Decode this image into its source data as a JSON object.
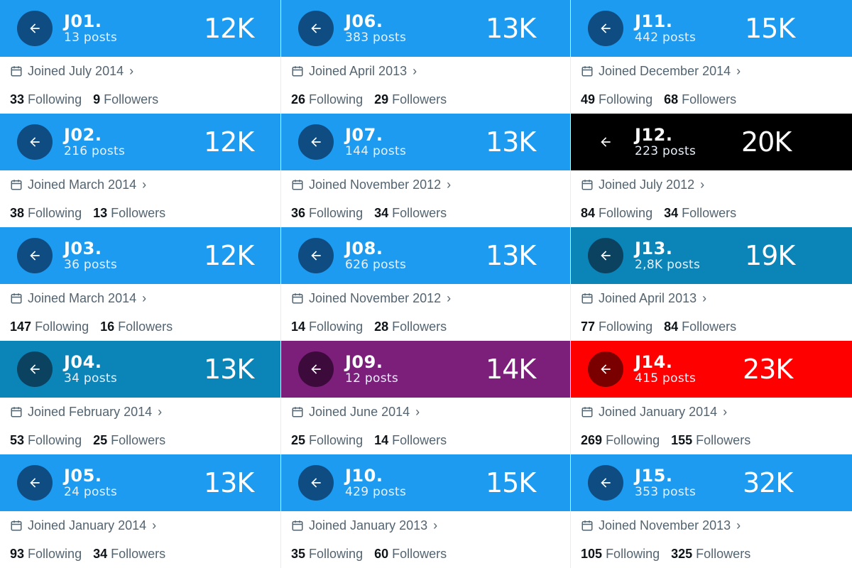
{
  "columns": [
    {
      "big_left": 287,
      "cards": [
        {
          "id": "J01.",
          "posts": "13 posts",
          "count": "12K",
          "joined": "Joined July 2014",
          "following": "33",
          "followers": "9",
          "bg": "#1d9bf0",
          "btn": "#0f4c81"
        },
        {
          "id": "J02.",
          "posts": "216 posts",
          "count": "12K",
          "joined": "Joined March 2014",
          "following": "38",
          "followers": "13",
          "bg": "#1d9bf0",
          "btn": "#0f4c81"
        },
        {
          "id": "J03.",
          "posts": "36 posts",
          "count": "12K",
          "joined": "Joined March 2014",
          "following": "147",
          "followers": "16",
          "bg": "#1d9bf0",
          "btn": "#0f4c81"
        },
        {
          "id": "J04.",
          "posts": "34 posts",
          "count": "13K",
          "joined": "Joined February 2014",
          "following": "53",
          "followers": "25",
          "bg": "#0b84b8",
          "btn": "#0a4260"
        },
        {
          "id": "J05.",
          "posts": "24 posts",
          "count": "13K",
          "joined": "Joined January 2014",
          "following": "93",
          "followers": "34",
          "bg": "#1d9bf0",
          "btn": "#0f4c81"
        }
      ]
    },
    {
      "big_left": 288,
      "cards": [
        {
          "id": "J06.",
          "posts": "383 posts",
          "count": "13K",
          "joined": "Joined April 2013",
          "following": "26",
          "followers": "29",
          "bg": "#1d9bf0",
          "btn": "#0f4c81"
        },
        {
          "id": "J07.",
          "posts": "144 posts",
          "count": "13K",
          "joined": "Joined November 2012",
          "following": "36",
          "followers": "34",
          "bg": "#1d9bf0",
          "btn": "#0f4c81"
        },
        {
          "id": "J08.",
          "posts": "626 posts",
          "count": "13K",
          "joined": "Joined November 2012",
          "following": "14",
          "followers": "28",
          "bg": "#1d9bf0",
          "btn": "#0f4c81"
        },
        {
          "id": "J09.",
          "posts": "12 posts",
          "count": "14K",
          "joined": "Joined June 2014",
          "following": "25",
          "followers": "14",
          "bg": "#7b1f7a",
          "btn": "#3d0a3c"
        },
        {
          "id": "J10.",
          "posts": "429 posts",
          "count": "15K",
          "joined": "Joined January 2013",
          "following": "35",
          "followers": "60",
          "bg": "#1d9bf0",
          "btn": "#0f4c81"
        }
      ]
    },
    {
      "big_left": 245,
      "cards": [
        {
          "id": "J11.",
          "posts": "442 posts",
          "count": "15K",
          "joined": "Joined December 2014",
          "following": "49",
          "followers": "68",
          "bg": "#1d9bf0",
          "btn": "#0f4c81"
        },
        {
          "id": "J12.",
          "posts": "223 posts",
          "count": "20K",
          "joined": "Joined July 2012",
          "following": "84",
          "followers": "34",
          "bg": "#000000",
          "btn": "#000000"
        },
        {
          "id": "J13.",
          "posts": "2,8K posts",
          "count": "19K",
          "joined": "Joined April 2013",
          "following": "77",
          "followers": "84",
          "bg": "#0b84b8",
          "btn": "#0a4260"
        },
        {
          "id": "J14.",
          "posts": "415 posts",
          "count": "23K",
          "joined": "Joined January 2014",
          "following": "269",
          "followers": "155",
          "bg": "#ff0000",
          "btn": "#7a0000"
        },
        {
          "id": "J15.",
          "posts": "353 posts",
          "count": "32K",
          "joined": "Joined November 2013",
          "following": "105",
          "followers": "325",
          "bg": "#1d9bf0",
          "btn": "#0f4c81"
        }
      ]
    }
  ],
  "labels": {
    "following": "Following",
    "followers": "Followers"
  },
  "icons": {
    "back": "arrow-left-icon",
    "calendar": "calendar-icon",
    "chevron": "chevron-right-icon"
  }
}
